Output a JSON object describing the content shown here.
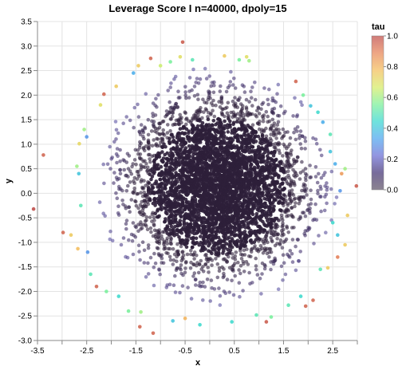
{
  "chart_data": {
    "type": "scatter",
    "title": "Leverage Score I n=40000, dpoly=15",
    "xlabel": "x",
    "ylabel": "y",
    "xlim": [
      -3.5,
      3.0
    ],
    "ylim": [
      -3.0,
      3.5
    ],
    "x_ticks": [
      "-3.5",
      "-2.5",
      "-1.5",
      "-0.5",
      "0.5",
      "1.5",
      "2.5"
    ],
    "x_tick_values": [
      -3.5,
      -2.5,
      -1.5,
      -0.5,
      0.5,
      1.5,
      2.5
    ],
    "x_minor_ticks": [
      -3.0,
      -2.0,
      -1.0,
      0.0,
      1.0,
      2.0,
      3.0
    ],
    "y_ticks": [
      "-3.0",
      "-2.5",
      "-2.0",
      "-1.5",
      "-1.0",
      "-0.5",
      "0.0",
      "0.5",
      "1.0",
      "1.5",
      "2.0",
      "2.5",
      "3.0",
      "3.5"
    ],
    "y_tick_values": [
      -3.0,
      -2.5,
      -2.0,
      -1.5,
      -1.0,
      -0.5,
      0.0,
      0.5,
      1.0,
      1.5,
      2.0,
      2.5,
      3.0,
      3.5
    ],
    "grid": true,
    "point_count": 40000,
    "color_field": "tau",
    "color_scale": {
      "domain": [
        0.0,
        1.0
      ],
      "ticks": [
        "0.0",
        "0.2",
        "0.4",
        "0.6",
        "0.8",
        "1.0"
      ],
      "colors": [
        "#2e1f3a",
        "#4a3a7a",
        "#6f73d6",
        "#52a8ef",
        "#3fd9d1",
        "#7ef09a",
        "#d8ec6a",
        "#f4c060",
        "#e8885c",
        "#c0504d"
      ]
    },
    "legend_position": "top-right",
    "outer_points": [
      {
        "x": -3.58,
        "y": -0.32,
        "tau": 1.0
      },
      {
        "x": -3.38,
        "y": 0.78,
        "tau": 0.95
      },
      {
        "x": -2.98,
        "y": -0.8,
        "tau": 0.95
      },
      {
        "x": -2.82,
        "y": -0.85,
        "tau": 0.75
      },
      {
        "x": -2.68,
        "y": -1.13,
        "tau": 0.78
      },
      {
        "x": -2.65,
        "y": 1.01,
        "tau": 0.72
      },
      {
        "x": -2.7,
        "y": 0.55,
        "tau": 0.6
      },
      {
        "x": -2.66,
        "y": 0.4,
        "tau": 0.4
      },
      {
        "x": -2.62,
        "y": -0.25,
        "tau": 0.5
      },
      {
        "x": -2.55,
        "y": 1.3,
        "tau": 0.6
      },
      {
        "x": -2.5,
        "y": 1.15,
        "tau": 0.3
      },
      {
        "x": -2.48,
        "y": -1.2,
        "tau": 0.3
      },
      {
        "x": -2.42,
        "y": -1.65,
        "tau": 0.5
      },
      {
        "x": -2.3,
        "y": -1.9,
        "tau": 0.95
      },
      {
        "x": -2.22,
        "y": 1.8,
        "tau": 0.7
      },
      {
        "x": -2.15,
        "y": 2.02,
        "tau": 0.95
      },
      {
        "x": -2.1,
        "y": -2.0,
        "tau": 0.55
      },
      {
        "x": -1.9,
        "y": 2.18,
        "tau": 0.75
      },
      {
        "x": -1.85,
        "y": -2.1,
        "tau": 0.45
      },
      {
        "x": -1.65,
        "y": -2.4,
        "tau": 0.55
      },
      {
        "x": -1.55,
        "y": 2.45,
        "tau": 0.35
      },
      {
        "x": -1.45,
        "y": 2.6,
        "tau": 0.75
      },
      {
        "x": -1.4,
        "y": -2.42,
        "tau": 0.6
      },
      {
        "x": -1.42,
        "y": -2.72,
        "tau": 0.95
      },
      {
        "x": -1.2,
        "y": 2.75,
        "tau": 0.95
      },
      {
        "x": -1.15,
        "y": -2.85,
        "tau": 0.95
      },
      {
        "x": -1.0,
        "y": 2.6,
        "tau": 0.65
      },
      {
        "x": -0.8,
        "y": 2.68,
        "tau": 0.55
      },
      {
        "x": -0.75,
        "y": -2.6,
        "tau": 0.4
      },
      {
        "x": -0.6,
        "y": 2.78,
        "tau": 0.7
      },
      {
        "x": -0.55,
        "y": 3.08,
        "tau": 0.97
      },
      {
        "x": -0.5,
        "y": -2.55,
        "tau": 0.8
      },
      {
        "x": -0.35,
        "y": 2.72,
        "tau": 0.5
      },
      {
        "x": -0.2,
        "y": -2.68,
        "tau": 0.45
      },
      {
        "x": 0.3,
        "y": 2.8,
        "tau": 0.75
      },
      {
        "x": 0.45,
        "y": -2.62,
        "tau": 0.45
      },
      {
        "x": 0.6,
        "y": 2.72,
        "tau": 0.55
      },
      {
        "x": 0.75,
        "y": 2.78,
        "tau": 0.7
      },
      {
        "x": 0.8,
        "y": 2.7,
        "tau": 0.6
      },
      {
        "x": 0.95,
        "y": -2.48,
        "tau": 0.5
      },
      {
        "x": 1.15,
        "y": -2.62,
        "tau": 0.97
      },
      {
        "x": 1.25,
        "y": -2.52,
        "tau": 0.55
      },
      {
        "x": 1.6,
        "y": -2.28,
        "tau": 0.5
      },
      {
        "x": 1.75,
        "y": 2.28,
        "tau": 0.95
      },
      {
        "x": 1.85,
        "y": -2.1,
        "tau": 0.45
      },
      {
        "x": 1.9,
        "y": 2.0,
        "tau": 0.55
      },
      {
        "x": 1.95,
        "y": -2.3,
        "tau": 0.95
      },
      {
        "x": 2.05,
        "y": 1.78,
        "tau": 0.4
      },
      {
        "x": 2.1,
        "y": -2.18,
        "tau": 0.95
      },
      {
        "x": 2.2,
        "y": 1.65,
        "tau": 0.45
      },
      {
        "x": 2.25,
        "y": -1.55,
        "tau": 0.5
      },
      {
        "x": 2.3,
        "y": 1.45,
        "tau": 0.35
      },
      {
        "x": 2.4,
        "y": -1.52,
        "tau": 0.75
      },
      {
        "x": 2.45,
        "y": 1.2,
        "tau": 0.5
      },
      {
        "x": 2.45,
        "y": 0.85,
        "tau": 0.4
      },
      {
        "x": 2.5,
        "y": -0.6,
        "tau": 0.45
      },
      {
        "x": 2.55,
        "y": 0.6,
        "tau": 0.35
      },
      {
        "x": 2.6,
        "y": -0.85,
        "tau": 0.4
      },
      {
        "x": 2.6,
        "y": -1.3,
        "tau": 0.9
      },
      {
        "x": 2.65,
        "y": 0.05,
        "tau": 0.3
      },
      {
        "x": 2.68,
        "y": 0.4,
        "tau": 0.85
      },
      {
        "x": 2.75,
        "y": 0.5,
        "tau": 0.6
      },
      {
        "x": 2.8,
        "y": -0.45,
        "tau": 0.75
      },
      {
        "x": 2.75,
        "y": -1.05,
        "tau": 0.75
      },
      {
        "x": 2.98,
        "y": 0.15,
        "tau": 0.97
      }
    ]
  }
}
